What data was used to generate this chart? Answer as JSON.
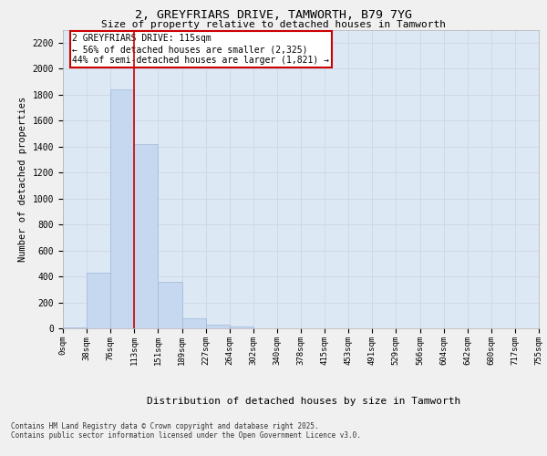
{
  "title": "2, GREYFRIARS DRIVE, TAMWORTH, B79 7YG",
  "subtitle": "Size of property relative to detached houses in Tamworth",
  "xlabel": "Distribution of detached houses by size in Tamworth",
  "ylabel": "Number of detached properties",
  "bar_values": [
    10,
    430,
    1840,
    1420,
    355,
    75,
    30,
    15,
    0,
    0,
    0,
    0,
    0,
    0,
    0,
    0,
    0,
    0,
    0,
    0
  ],
  "bin_labels": [
    "0sqm",
    "38sqm",
    "76sqm",
    "113sqm",
    "151sqm",
    "189sqm",
    "227sqm",
    "264sqm",
    "302sqm",
    "340sqm",
    "378sqm",
    "415sqm",
    "453sqm",
    "491sqm",
    "529sqm",
    "566sqm",
    "604sqm",
    "642sqm",
    "680sqm",
    "717sqm",
    "755sqm"
  ],
  "bar_color": "#c5d8f0",
  "bar_edge_color": "#a0b8d8",
  "grid_color": "#d0d8e8",
  "background_color": "#dde8f5",
  "red_line_x": 3.0,
  "annotation_text": "2 GREYFRIARS DRIVE: 115sqm\n← 56% of detached houses are smaller (2,325)\n44% of semi-detached houses are larger (1,821) →",
  "annotation_box_color": "#ffffff",
  "annotation_box_edge": "#cc0000",
  "ylim": [
    0,
    2300
  ],
  "yticks": [
    0,
    200,
    400,
    600,
    800,
    1000,
    1200,
    1400,
    1600,
    1800,
    2000,
    2200
  ],
  "footer_line1": "Contains HM Land Registry data © Crown copyright and database right 2025.",
  "footer_line2": "Contains public sector information licensed under the Open Government Licence v3.0."
}
